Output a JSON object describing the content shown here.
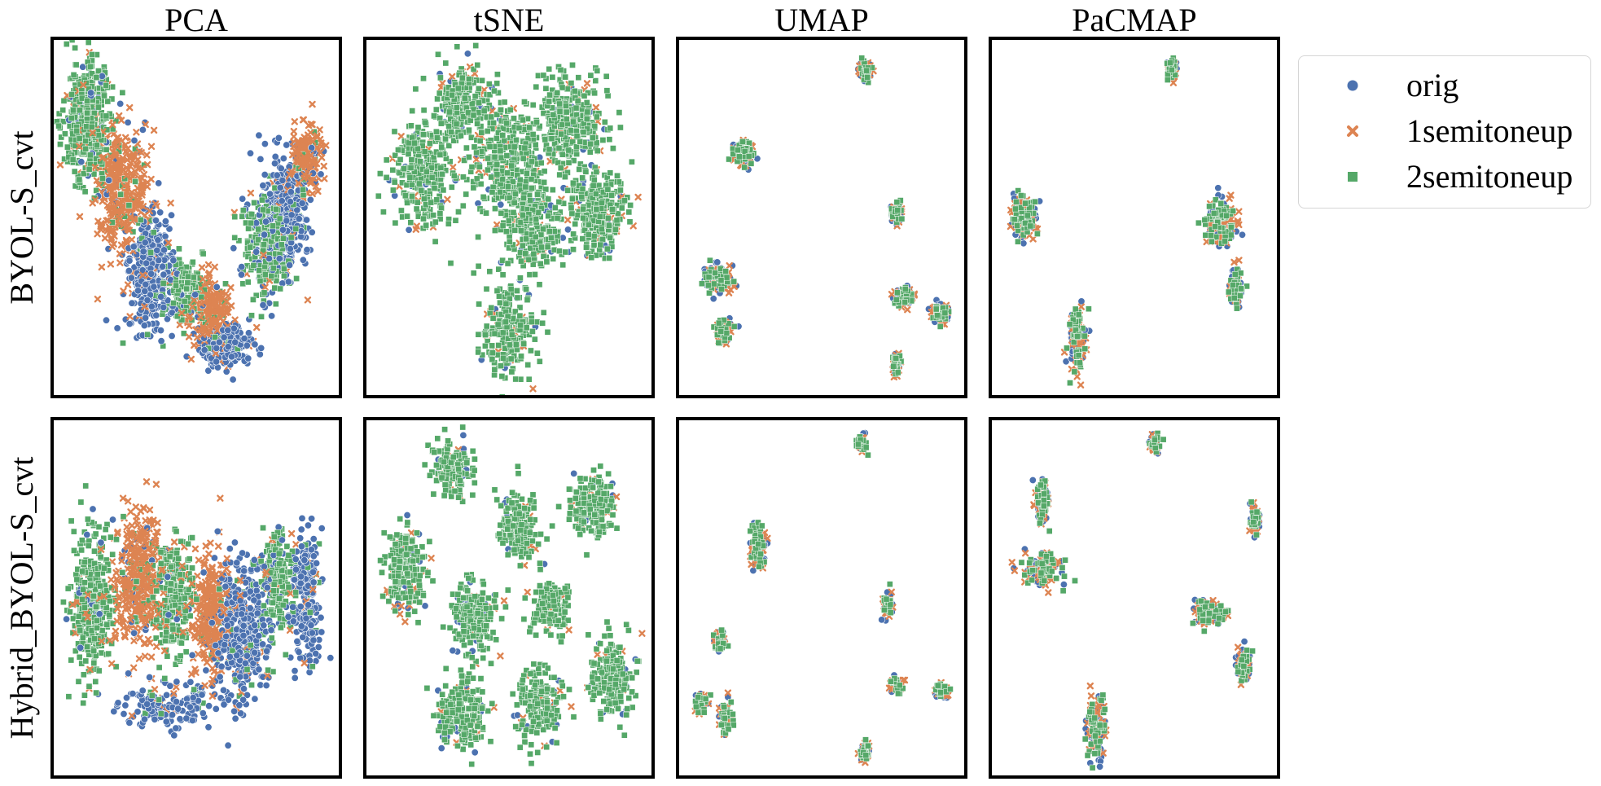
{
  "colors": {
    "orig": "#4c72b0",
    "1semitoneup": "#dd8452",
    "2semitoneup": "#55a868",
    "frame": "#000000"
  },
  "chart_data": {
    "type": "scatter",
    "layout": "grid 2 rows x 4 columns",
    "columns": [
      "PCA",
      "tSNE",
      "UMAP",
      "PaCMAP"
    ],
    "rows": [
      "BYOL-S_cvt",
      "Hybrid_BYOL-S_cvt"
    ],
    "axes": {
      "ticks": "none",
      "grid": false,
      "frame": true
    },
    "legend": {
      "placement": "right, outside top",
      "items": [
        {
          "label": "orig",
          "marker": "circle",
          "color": "#4c72b0"
        },
        {
          "label": "1semitoneup",
          "marker": "x",
          "color": "#dd8452"
        },
        {
          "label": "2semitoneup",
          "marker": "square",
          "color": "#55a868"
        }
      ]
    },
    "panels": [
      {
        "row": "BYOL-S_cvt",
        "col": "PCA",
        "shape": "V-shaped point cloud; 2semitoneup on upper-left arm, orig toward bottom and right arm",
        "clusters": [
          {
            "series": "2semitoneup",
            "x": 0.12,
            "y": 0.78,
            "spread": [
              0.07,
              0.16
            ],
            "n": 420
          },
          {
            "series": "1semitoneup",
            "x": 0.24,
            "y": 0.58,
            "spread": [
              0.08,
              0.16
            ],
            "n": 380
          },
          {
            "series": "orig",
            "x": 0.34,
            "y": 0.34,
            "spread": [
              0.08,
              0.14
            ],
            "n": 380
          },
          {
            "series": "2semitoneup",
            "x": 0.46,
            "y": 0.3,
            "spread": [
              0.06,
              0.08
            ],
            "n": 220
          },
          {
            "series": "1semitoneup",
            "x": 0.55,
            "y": 0.24,
            "spread": [
              0.06,
              0.08
            ],
            "n": 220
          },
          {
            "series": "orig",
            "x": 0.6,
            "y": 0.14,
            "spread": [
              0.08,
              0.05
            ],
            "n": 280
          },
          {
            "series": "orig",
            "x": 0.8,
            "y": 0.5,
            "spread": [
              0.08,
              0.16
            ],
            "n": 420
          },
          {
            "series": "2semitoneup",
            "x": 0.74,
            "y": 0.42,
            "spread": [
              0.07,
              0.12
            ],
            "n": 240
          },
          {
            "series": "1semitoneup",
            "x": 0.88,
            "y": 0.66,
            "spread": [
              0.05,
              0.08
            ],
            "n": 200
          }
        ]
      },
      {
        "row": "BYOL-S_cvt",
        "col": "tSNE",
        "shape": "large merged blob of overlapping points with a lower lobe",
        "clusters": [
          {
            "series": "2semitoneup",
            "x": 0.2,
            "y": 0.62,
            "spread": [
              0.1,
              0.14
            ],
            "n": 300
          },
          {
            "series": "2semitoneup",
            "x": 0.34,
            "y": 0.82,
            "spread": [
              0.09,
              0.1
            ],
            "n": 260
          },
          {
            "series": "2semitoneup",
            "x": 0.5,
            "y": 0.66,
            "spread": [
              0.12,
              0.14
            ],
            "n": 320
          },
          {
            "series": "2semitoneup",
            "x": 0.72,
            "y": 0.76,
            "spread": [
              0.11,
              0.12
            ],
            "n": 300
          },
          {
            "series": "2semitoneup",
            "x": 0.8,
            "y": 0.52,
            "spread": [
              0.1,
              0.1
            ],
            "n": 280
          },
          {
            "series": "2semitoneup",
            "x": 0.58,
            "y": 0.48,
            "spread": [
              0.1,
              0.1
            ],
            "n": 260
          },
          {
            "series": "2semitoneup",
            "x": 0.5,
            "y": 0.18,
            "spread": [
              0.08,
              0.11
            ],
            "n": 240
          }
        ]
      },
      {
        "row": "BYOL-S_cvt",
        "col": "UMAP",
        "shape": "several small separated clusters",
        "clusters": [
          {
            "series": "orig",
            "x": 0.65,
            "y": 0.91,
            "spread": [
              0.02,
              0.02
            ],
            "n": 80
          },
          {
            "series": "orig",
            "x": 0.23,
            "y": 0.68,
            "spread": [
              0.03,
              0.03
            ],
            "n": 110
          },
          {
            "series": "orig",
            "x": 0.76,
            "y": 0.51,
            "spread": [
              0.015,
              0.03
            ],
            "n": 70
          },
          {
            "series": "orig",
            "x": 0.14,
            "y": 0.33,
            "spread": [
              0.05,
              0.035
            ],
            "n": 140
          },
          {
            "series": "orig",
            "x": 0.16,
            "y": 0.18,
            "spread": [
              0.025,
              0.03
            ],
            "n": 80
          },
          {
            "series": "orig",
            "x": 0.79,
            "y": 0.28,
            "spread": [
              0.03,
              0.025
            ],
            "n": 100
          },
          {
            "series": "orig",
            "x": 0.91,
            "y": 0.23,
            "spread": [
              0.025,
              0.025
            ],
            "n": 90
          },
          {
            "series": "orig",
            "x": 0.76,
            "y": 0.09,
            "spread": [
              0.015,
              0.03
            ],
            "n": 70
          }
        ]
      },
      {
        "row": "BYOL-S_cvt",
        "col": "PaCMAP",
        "shape": "few elongated clusters",
        "clusters": [
          {
            "series": "orig",
            "x": 0.63,
            "y": 0.91,
            "spread": [
              0.015,
              0.025
            ],
            "n": 80
          },
          {
            "series": "orig",
            "x": 0.12,
            "y": 0.5,
            "spread": [
              0.04,
              0.05
            ],
            "n": 170
          },
          {
            "series": "orig",
            "x": 0.8,
            "y": 0.48,
            "spread": [
              0.05,
              0.06
            ],
            "n": 180
          },
          {
            "series": "orig",
            "x": 0.85,
            "y": 0.3,
            "spread": [
              0.02,
              0.05
            ],
            "n": 90
          },
          {
            "series": "orig",
            "x": 0.3,
            "y": 0.16,
            "spread": [
              0.025,
              0.08
            ],
            "n": 150
          }
        ]
      },
      {
        "row": "Hybrid_BYOL-S_cvt",
        "col": "PCA",
        "shape": "wide band; 2semitoneup left, 1semitoneup middle, orig right",
        "clusters": [
          {
            "series": "2semitoneup",
            "x": 0.14,
            "y": 0.48,
            "spread": [
              0.07,
              0.18
            ],
            "n": 380
          },
          {
            "series": "1semitoneup",
            "x": 0.3,
            "y": 0.54,
            "spread": [
              0.07,
              0.18
            ],
            "n": 380
          },
          {
            "series": "2semitoneup",
            "x": 0.42,
            "y": 0.5,
            "spread": [
              0.06,
              0.16
            ],
            "n": 300
          },
          {
            "series": "1semitoneup",
            "x": 0.55,
            "y": 0.46,
            "spread": [
              0.06,
              0.15
            ],
            "n": 280
          },
          {
            "series": "orig",
            "x": 0.66,
            "y": 0.42,
            "spread": [
              0.08,
              0.18
            ],
            "n": 420
          },
          {
            "series": "2semitoneup",
            "x": 0.78,
            "y": 0.54,
            "spread": [
              0.05,
              0.13
            ],
            "n": 220
          },
          {
            "series": "orig",
            "x": 0.88,
            "y": 0.5,
            "spread": [
              0.05,
              0.15
            ],
            "n": 260
          },
          {
            "series": "orig",
            "x": 0.4,
            "y": 0.2,
            "spread": [
              0.18,
              0.06
            ],
            "n": 160
          }
        ]
      },
      {
        "row": "Hybrid_BYOL-S_cvt",
        "col": "tSNE",
        "shape": "set of touching round clusters",
        "clusters": [
          {
            "series": "2semitoneup",
            "x": 0.3,
            "y": 0.86,
            "spread": [
              0.06,
              0.07
            ],
            "n": 160
          },
          {
            "series": "2semitoneup",
            "x": 0.14,
            "y": 0.58,
            "spread": [
              0.07,
              0.11
            ],
            "n": 220
          },
          {
            "series": "2semitoneup",
            "x": 0.53,
            "y": 0.7,
            "spread": [
              0.06,
              0.09
            ],
            "n": 180
          },
          {
            "series": "2semitoneup",
            "x": 0.79,
            "y": 0.76,
            "spread": [
              0.07,
              0.08
            ],
            "n": 200
          },
          {
            "series": "2semitoneup",
            "x": 0.64,
            "y": 0.48,
            "spread": [
              0.06,
              0.07
            ],
            "n": 180
          },
          {
            "series": "2semitoneup",
            "x": 0.38,
            "y": 0.44,
            "spread": [
              0.07,
              0.1
            ],
            "n": 200
          },
          {
            "series": "2semitoneup",
            "x": 0.34,
            "y": 0.18,
            "spread": [
              0.08,
              0.1
            ],
            "n": 220
          },
          {
            "series": "2semitoneup",
            "x": 0.6,
            "y": 0.2,
            "spread": [
              0.07,
              0.09
            ],
            "n": 200
          },
          {
            "series": "2semitoneup",
            "x": 0.86,
            "y": 0.28,
            "spread": [
              0.07,
              0.1
            ],
            "n": 200
          }
        ]
      },
      {
        "row": "Hybrid_BYOL-S_cvt",
        "col": "UMAP",
        "shape": "several small separated clusters",
        "clusters": [
          {
            "series": "orig",
            "x": 0.64,
            "y": 0.93,
            "spread": [
              0.015,
              0.02
            ],
            "n": 60
          },
          {
            "series": "orig",
            "x": 0.28,
            "y": 0.64,
            "spread": [
              0.025,
              0.06
            ],
            "n": 120
          },
          {
            "series": "orig",
            "x": 0.73,
            "y": 0.48,
            "spread": [
              0.015,
              0.03
            ],
            "n": 60
          },
          {
            "series": "orig",
            "x": 0.15,
            "y": 0.38,
            "spread": [
              0.02,
              0.025
            ],
            "n": 60
          },
          {
            "series": "orig",
            "x": 0.76,
            "y": 0.26,
            "spread": [
              0.02,
              0.025
            ],
            "n": 60
          },
          {
            "series": "orig",
            "x": 0.92,
            "y": 0.24,
            "spread": [
              0.025,
              0.02
            ],
            "n": 60
          },
          {
            "series": "orig",
            "x": 0.08,
            "y": 0.21,
            "spread": [
              0.02,
              0.025
            ],
            "n": 60
          },
          {
            "series": "orig",
            "x": 0.17,
            "y": 0.16,
            "spread": [
              0.02,
              0.04
            ],
            "n": 70
          },
          {
            "series": "orig",
            "x": 0.65,
            "y": 0.07,
            "spread": [
              0.015,
              0.025
            ],
            "n": 60
          }
        ]
      },
      {
        "row": "Hybrid_BYOL-S_cvt",
        "col": "PaCMAP",
        "shape": "few elongated clusters",
        "clusters": [
          {
            "series": "orig",
            "x": 0.57,
            "y": 0.93,
            "spread": [
              0.015,
              0.025
            ],
            "n": 60
          },
          {
            "series": "orig",
            "x": 0.18,
            "y": 0.77,
            "spread": [
              0.02,
              0.05
            ],
            "n": 100
          },
          {
            "series": "orig",
            "x": 0.92,
            "y": 0.72,
            "spread": [
              0.015,
              0.04
            ],
            "n": 80
          },
          {
            "series": "orig",
            "x": 0.18,
            "y": 0.58,
            "spread": [
              0.07,
              0.04
            ],
            "n": 140
          },
          {
            "series": "orig",
            "x": 0.76,
            "y": 0.46,
            "spread": [
              0.05,
              0.03
            ],
            "n": 130
          },
          {
            "series": "orig",
            "x": 0.88,
            "y": 0.32,
            "spread": [
              0.02,
              0.05
            ],
            "n": 90
          },
          {
            "series": "orig",
            "x": 0.37,
            "y": 0.14,
            "spread": [
              0.03,
              0.09
            ],
            "n": 140
          }
        ]
      }
    ]
  }
}
